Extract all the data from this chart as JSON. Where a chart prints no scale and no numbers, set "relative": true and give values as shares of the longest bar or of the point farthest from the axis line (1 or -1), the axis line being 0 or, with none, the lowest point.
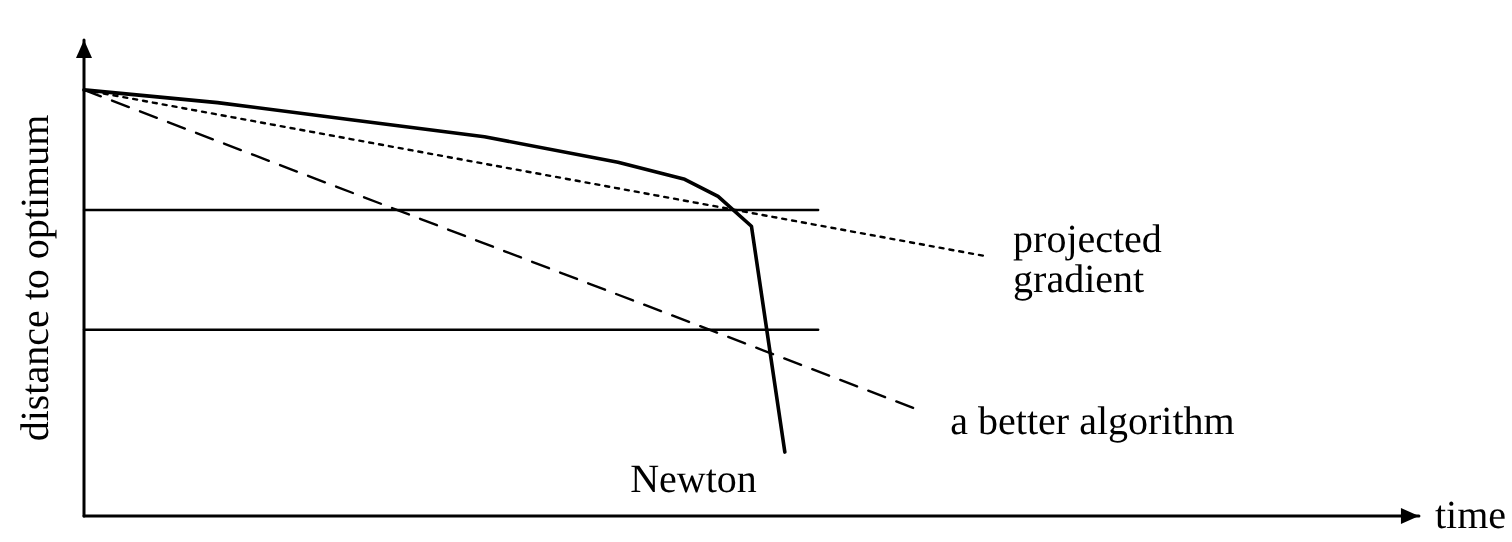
{
  "chart_data": {
    "type": "line",
    "relative": true,
    "xlabel": "time",
    "ylabel": "distance to optimum",
    "grid": false,
    "legend": false,
    "marker": "none",
    "categories": [
      null,
      null,
      null,
      null,
      null,
      null,
      null,
      null,
      null,
      null,
      null,
      null,
      null,
      null,
      null,
      null,
      null,
      null,
      null,
      null,
      null,
      null,
      null,
      null,
      null,
      null,
      null,
      null,
      null,
      null,
      null,
      null,
      null,
      null,
      null,
      null,
      null,
      null,
      null,
      null,
      null
    ],
    "series": [
      {
        "name": "Newton",
        "color": "#000000",
        "line_style": "solid",
        "values": [
          1,
          null,
          null,
          null,
          0.97,
          null,
          null,
          null,
          0.93,
          null,
          null,
          null,
          0.89,
          null,
          null,
          null,
          0.83,
          null,
          0.79,
          0.75,
          0.68,
          0.15,
          null,
          null,
          null,
          null,
          null,
          null,
          null,
          null,
          null,
          null,
          null,
          null,
          null,
          null,
          null,
          null,
          null,
          null,
          null
        ]
      },
      {
        "name": "projected gradient",
        "color": "#000000",
        "line_style": "dotted",
        "values": [
          1,
          null,
          null,
          null,
          null,
          null,
          null,
          null,
          null,
          null,
          null,
          null,
          null,
          null,
          null,
          null,
          null,
          null,
          null,
          null,
          null,
          null,
          null,
          null,
          null,
          null,
          null,
          0.61,
          null,
          null,
          null,
          null,
          null,
          null,
          null,
          null,
          null,
          null,
          null,
          null,
          null
        ]
      },
      {
        "name": "a better algorithm",
        "color": "#000000",
        "line_style": "dashed",
        "values": [
          1,
          null,
          null,
          null,
          null,
          null,
          null,
          null,
          null,
          null,
          null,
          null,
          null,
          null,
          null,
          null,
          null,
          null,
          null,
          null,
          null,
          null,
          null,
          null,
          null,
          0.249,
          null,
          null,
          null,
          null,
          null,
          null,
          null,
          null,
          null,
          null,
          null,
          null,
          null,
          null,
          null
        ]
      },
      {
        "color": "#000000",
        "line_style": "solid",
        "values": [
          0.718,
          null,
          null,
          null,
          null,
          null,
          null,
          null,
          null,
          null,
          null,
          null,
          null,
          null,
          null,
          null,
          null,
          null,
          null,
          null,
          null,
          null,
          0.718,
          null,
          null,
          null,
          null,
          null,
          null,
          null,
          null,
          null,
          null,
          null,
          null,
          null,
          null,
          null,
          null,
          null,
          null
        ]
      },
      {
        "color": "#000000",
        "line_style": "solid",
        "values": [
          0.437,
          null,
          null,
          null,
          null,
          null,
          null,
          null,
          null,
          null,
          null,
          null,
          null,
          null,
          null,
          null,
          null,
          null,
          null,
          null,
          null,
          null,
          0.437,
          null,
          null,
          null,
          null,
          null,
          null,
          null,
          null,
          null,
          null,
          null,
          null,
          null,
          null,
          null,
          null,
          null,
          null
        ]
      }
    ]
  }
}
